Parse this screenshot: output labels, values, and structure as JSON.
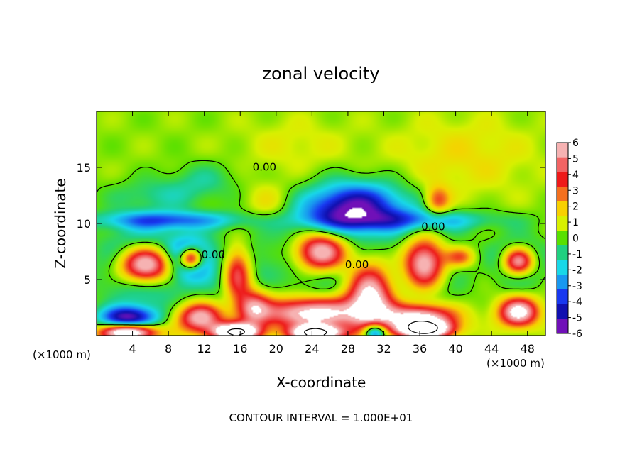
{
  "chart_data": {
    "type": "heatmap",
    "title": "zonal velocity",
    "xlabel": "X-coordinate",
    "ylabel": "Z-coordinate",
    "x_unit_left": "(×1000 m)",
    "x_unit_right": "(×1000 m)",
    "xlim": [
      0,
      50
    ],
    "ylim": [
      0,
      20
    ],
    "x_ticks": [
      4,
      8,
      12,
      16,
      20,
      24,
      28,
      32,
      36,
      40,
      44,
      48
    ],
    "y_ticks": [
      5,
      10,
      15
    ],
    "footer": "CONTOUR INTERVAL = 1.000E+01",
    "contour_labels": [
      {
        "text": "0.00",
        "x": 18.7,
        "z": 14.7
      },
      {
        "text": "0.00",
        "x": 37.5,
        "z": 9.4
      },
      {
        "text": "0.00",
        "x": 13.0,
        "z": 6.9
      },
      {
        "text": "0.00",
        "x": 29.0,
        "z": 6.0
      }
    ],
    "colorbar": {
      "ticks": [
        6,
        5,
        4,
        3,
        2,
        1,
        0,
        -1,
        -2,
        -3,
        -4,
        -5,
        -6
      ],
      "colors": [
        "#f6b2b2",
        "#f26464",
        "#ee1a1a",
        "#f4701e",
        "#f8d000",
        "#d8f000",
        "#58e000",
        "#20d080",
        "#18d8e8",
        "#1898f0",
        "#1838f0",
        "#1010b0",
        "#7010b8"
      ]
    },
    "field": {
      "x_min": 0,
      "x_max": 50,
      "z_min": 0,
      "z_max": 20,
      "description_values_clip": [
        -6,
        6
      ],
      "background": 0.4,
      "blobs": [
        {
          "x": 5.5,
          "z": 6.3,
          "rx": 3.2,
          "rz": 1.8,
          "v": 12
        },
        {
          "x": 5.5,
          "z": 6.3,
          "rx": 4.6,
          "rz": 3.0,
          "v": -6
        },
        {
          "x": 10.5,
          "z": 6.9,
          "rx": 1.3,
          "rz": 1.0,
          "v": 9
        },
        {
          "x": 10.5,
          "z": 6.9,
          "rx": 2.2,
          "rz": 1.8,
          "v": -5
        },
        {
          "x": 15.7,
          "z": 5.5,
          "rx": 1.7,
          "rz": 2.6,
          "v": 7
        },
        {
          "x": 15.7,
          "z": 5.5,
          "rx": 2.8,
          "rz": 3.4,
          "v": -3
        },
        {
          "x": 25.0,
          "z": 7.5,
          "rx": 3.2,
          "rz": 2.0,
          "v": 12
        },
        {
          "x": 25.0,
          "z": 7.5,
          "rx": 4.4,
          "rz": 3.0,
          "v": -6
        },
        {
          "x": 36.5,
          "z": 6.5,
          "rx": 2.6,
          "rz": 2.5,
          "v": 11
        },
        {
          "x": 36.5,
          "z": 6.5,
          "rx": 3.8,
          "rz": 3.4,
          "v": -5
        },
        {
          "x": 47.0,
          "z": 6.6,
          "rx": 1.8,
          "rz": 1.3,
          "v": 9
        },
        {
          "x": 47.0,
          "z": 6.6,
          "rx": 2.8,
          "rz": 2.1,
          "v": -4
        },
        {
          "x": 40.5,
          "z": 7.0,
          "rx": 1.6,
          "rz": 0.9,
          "v": 3.5
        },
        {
          "x": 30.5,
          "z": 3.5,
          "rx": 2.6,
          "rz": 3.0,
          "v": 7
        },
        {
          "x": 24.0,
          "z": 2.0,
          "rx": 5.5,
          "rz": 1.4,
          "v": 7
        },
        {
          "x": 11.5,
          "z": 1.6,
          "rx": 2.6,
          "rz": 1.3,
          "v": 6
        },
        {
          "x": 17.5,
          "z": 2.5,
          "rx": 1.8,
          "rz": 1.6,
          "v": 5
        },
        {
          "x": 36.0,
          "z": 1.6,
          "rx": 4.0,
          "rz": 1.2,
          "v": 7
        },
        {
          "x": 47.0,
          "z": 2.1,
          "rx": 2.2,
          "rz": 1.3,
          "v": 7
        },
        {
          "x": 3.5,
          "z": 1.6,
          "rx": 3.2,
          "rz": 1.0,
          "v": -6
        },
        {
          "x": 3.5,
          "z": 0.3,
          "rx": 3.0,
          "rz": 0.7,
          "v": 9
        },
        {
          "x": 15.5,
          "z": 0.3,
          "rx": 2.6,
          "rz": 0.8,
          "v": 10
        },
        {
          "x": 24.5,
          "z": 0.2,
          "rx": 2.8,
          "rz": 0.7,
          "v": 10
        },
        {
          "x": 36.5,
          "z": 0.5,
          "rx": 3.0,
          "rz": 0.8,
          "v": 9
        },
        {
          "x": 31.0,
          "z": 0.3,
          "rx": 1.3,
          "rz": 0.8,
          "v": -6
        },
        {
          "x": 29.0,
          "z": 11.5,
          "rx": 5.5,
          "rz": 2.2,
          "v": -6
        },
        {
          "x": 8.0,
          "z": 10.3,
          "rx": 8.5,
          "rz": 0.8,
          "v": -3.5
        },
        {
          "x": 36.0,
          "z": 10.3,
          "rx": 10.0,
          "rz": 0.9,
          "v": -2.5
        },
        {
          "x": 7.0,
          "z": 12.5,
          "rx": 6.0,
          "rz": 1.5,
          "v": -1.5
        },
        {
          "x": 12.0,
          "z": 14.0,
          "rx": 4.0,
          "rz": 1.5,
          "v": -1.2
        },
        {
          "x": 38.0,
          "z": 12.0,
          "rx": 1.4,
          "rz": 1.3,
          "v": 3.5
        },
        {
          "x": 41.0,
          "z": 16.0,
          "rx": 8.0,
          "rz": 3.5,
          "v": 1.2
        },
        {
          "x": 19.0,
          "z": 12.0,
          "rx": 2.5,
          "rz": 1.7,
          "v": 1.2
        },
        {
          "x": 22.0,
          "z": 17.0,
          "rx": 6.0,
          "rz": 2.5,
          "v": 0.8
        }
      ]
    }
  }
}
